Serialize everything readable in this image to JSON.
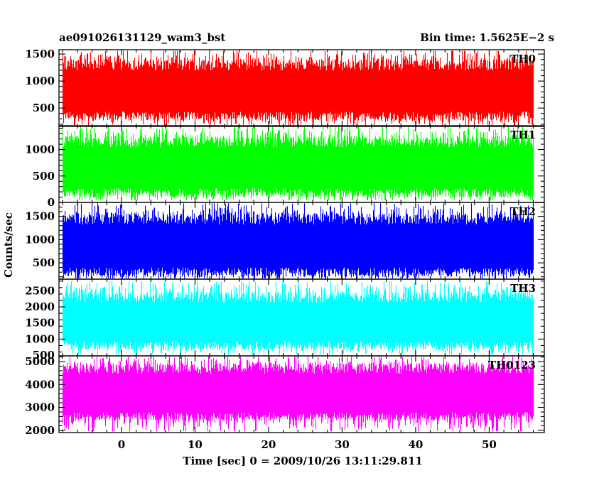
{
  "header": {
    "obs_id": "ae091026131129_wam3_bst",
    "bin_time": "Bin time: 1.5625E−2 s"
  },
  "chart_data": {
    "type": "line",
    "title": "ae091026131129_wam3_bst",
    "subtitle": "Bin time: 1.5625E−2 s",
    "xlabel": "Time [sec] 0 = 2009/10/26 13:11:29.811",
    "ylabel": "Counts/sec",
    "xlim": [
      -8.5,
      57.5
    ],
    "data_range": [
      -8.0,
      56.0
    ],
    "bin_time_s": 0.015625,
    "x_ticks": [
      0,
      10,
      20,
      30,
      40,
      50
    ],
    "grid": false,
    "panels": [
      {
        "name": "TH0",
        "color": "#ff0000",
        "ylim": [
          160,
          1580
        ],
        "y_ticks": [
          500,
          1000,
          1500
        ],
        "typical_low": 350,
        "typical_high": 1300,
        "peak": 1560,
        "trough": 170
      },
      {
        "name": "TH1",
        "color": "#00ff00",
        "ylim": [
          0,
          1450
        ],
        "y_ticks": [
          0,
          500,
          1000
        ],
        "typical_low": 180,
        "typical_high": 1150,
        "peak": 1440,
        "trough": 40
      },
      {
        "name": "TH2",
        "color": "#0000ff",
        "ylim": [
          150,
          1800
        ],
        "y_ticks": [
          500,
          1000,
          1500
        ],
        "typical_low": 300,
        "typical_high": 1450,
        "peak": 1780,
        "trough": 160
      },
      {
        "name": "TH3",
        "color": "#00ffff",
        "ylim": [
          480,
          2860
        ],
        "y_ticks": [
          500,
          1000,
          1500,
          2000,
          2500
        ],
        "typical_low": 800,
        "typical_high": 2300,
        "peak": 2800,
        "trough": 520
      },
      {
        "name": "TH0123",
        "color": "#ff00ff",
        "ylim": [
          1900,
          5250
        ],
        "y_ticks": [
          2000,
          3000,
          4000,
          5000
        ],
        "typical_low": 2600,
        "typical_high": 4700,
        "peak": 5230,
        "trough": 1950
      }
    ]
  }
}
